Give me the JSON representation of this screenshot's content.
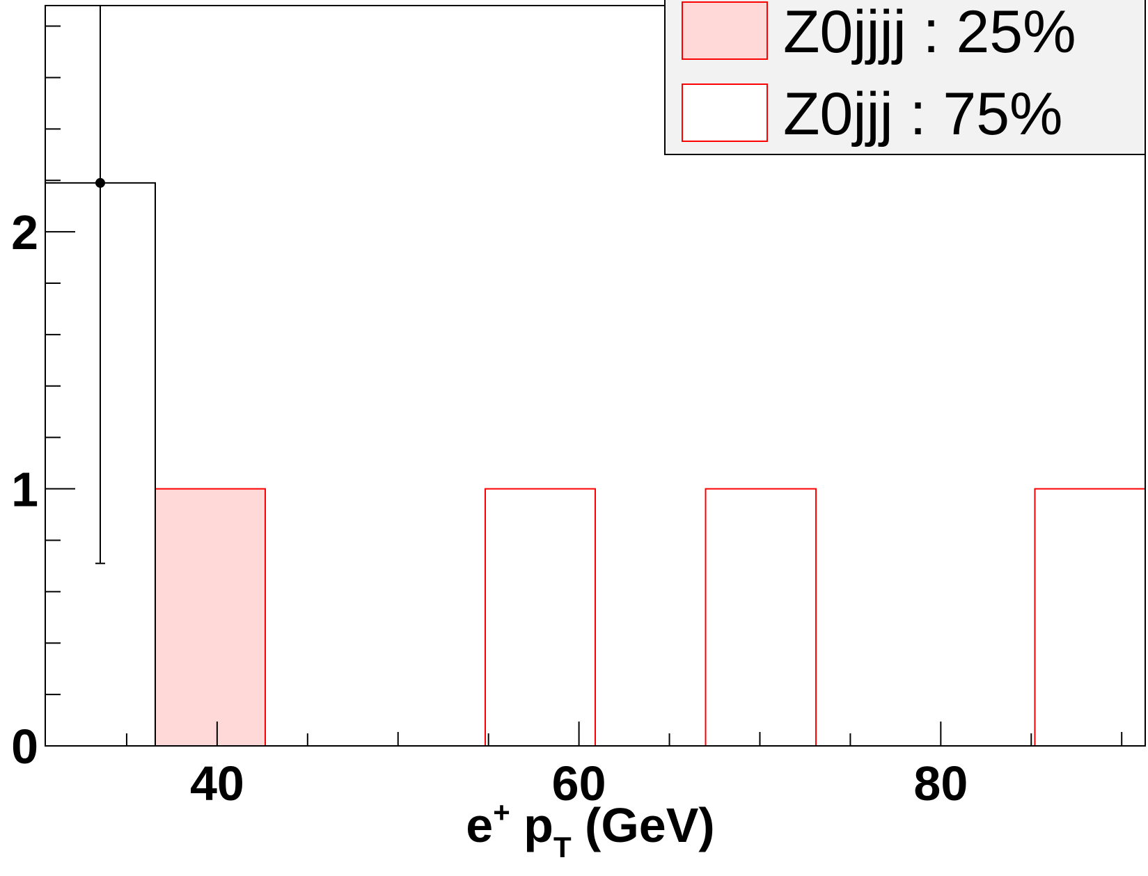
{
  "chart_data": {
    "type": "bar",
    "histogram": true,
    "xlim": [
      30.5,
      91.3
    ],
    "ylim": [
      0,
      2.88
    ],
    "bin_width": 6.08,
    "grid": false,
    "legend_position": "top-right",
    "xlabel": {
      "base1": "e",
      "sup": "+",
      "base2": " p",
      "sub": "T",
      "tail": " (GeV)"
    },
    "x_tick_labels": [
      {
        "value": 40,
        "label": "40"
      },
      {
        "value": 60,
        "label": "60"
      },
      {
        "value": 80,
        "label": "80"
      }
    ],
    "y_tick_labels": [
      {
        "value": 0,
        "label": "0"
      },
      {
        "value": 1,
        "label": "1"
      },
      {
        "value": 2,
        "label": "2"
      }
    ],
    "series": [
      {
        "name": "Z0jjjj : 25%",
        "fill": "#ffd8d8",
        "stroke": "#ff0000",
        "bins": [
          {
            "x0": 36.58,
            "x1": 42.66,
            "value": 1
          }
        ]
      },
      {
        "name": "Z0jjj : 75%",
        "fill": "none",
        "stroke": "#ff0000",
        "bins": [
          {
            "x0": 54.82,
            "x1": 60.9,
            "value": 1
          },
          {
            "x0": 67.0,
            "x1": 73.1,
            "value": 1
          },
          {
            "x0": 85.2,
            "x1": 91.3,
            "value": 1
          }
        ]
      }
    ],
    "data_hist": {
      "stroke": "#000000",
      "bins": [
        {
          "x0": 30.5,
          "x1": 36.58,
          "value": 2.19
        }
      ]
    },
    "data_points": [
      {
        "x": 33.54,
        "y": 2.19,
        "err_low": 0.71,
        "err_high": 2.88
      }
    ]
  }
}
